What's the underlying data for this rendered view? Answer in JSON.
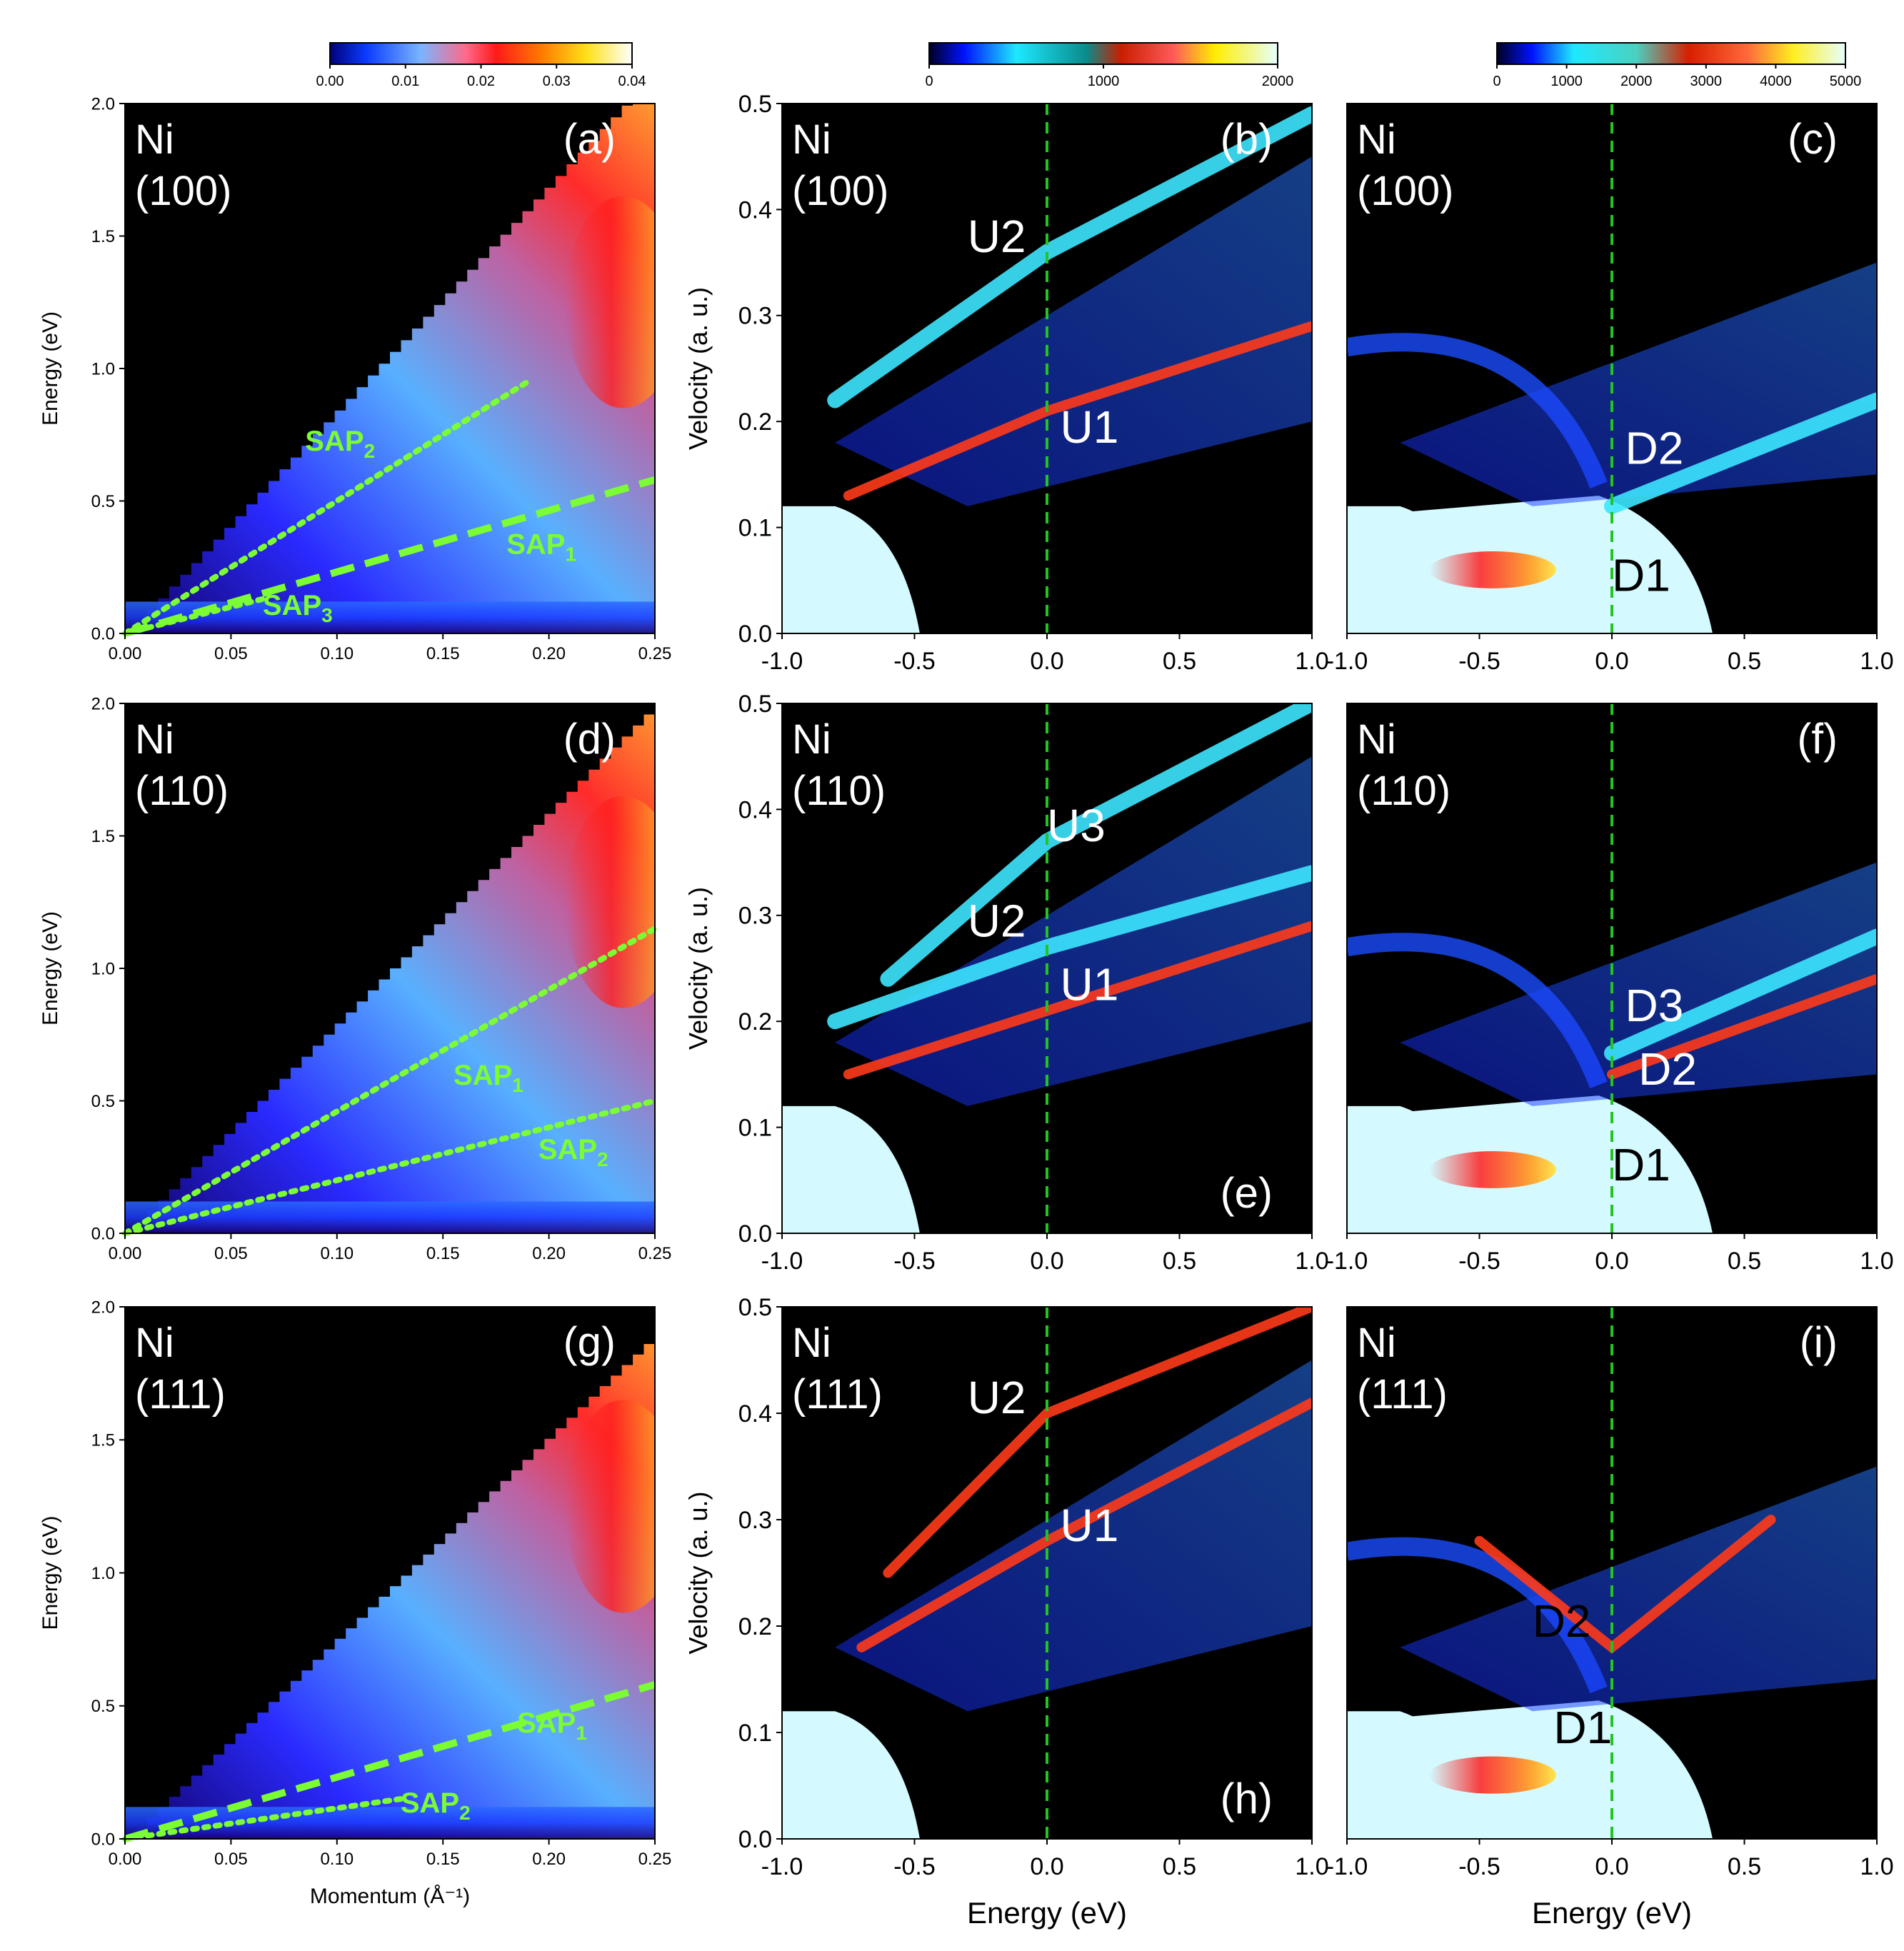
{
  "figure": {
    "alt": "Nine-panel figure of Ni (100), (110), (111): energy vs momentum (left) and velocity vs energy (middle, right)"
  },
  "colors": {
    "black": "#000000",
    "green": "#7CFC32",
    "dash_green": "#22c322",
    "white": "#ffffff",
    "text": "#000000"
  },
  "chart_data": [
    {
      "id": "a",
      "type": "heatmap",
      "panel_label": "(a)",
      "material": "Ni",
      "surface": "(100)",
      "xlabel": "",
      "ylabel": "Energy (eV)",
      "xlim": [
        0,
        0.25
      ],
      "ylim": [
        0,
        2.0
      ],
      "xticks": [
        "0.00",
        "0.05",
        "0.10",
        "0.15",
        "0.20",
        "0.25"
      ],
      "yticks": [
        "0.0",
        "0.5",
        "1.0",
        "1.5",
        "2.0"
      ],
      "colorbar": {
        "ticks": [
          "0.00",
          "0.01",
          "0.02",
          "0.03",
          "0.04"
        ],
        "range": [
          0,
          0.04
        ],
        "scheme": "jet-white"
      },
      "fan_edge": {
        "slope_eV_per_invA": 8.5
      },
      "bands": [
        {
          "name": "SAP_2",
          "style": "dotted",
          "x": [
            0.0,
            0.19
          ],
          "y": [
            0.0,
            0.95
          ]
        },
        {
          "name": "SAP_1",
          "style": "dashed",
          "x": [
            0.0,
            0.25
          ],
          "y": [
            0.0,
            0.58
          ]
        },
        {
          "name": "SAP_3",
          "style": "dotted",
          "x": [
            0.0,
            0.065
          ],
          "y": [
            0.0,
            0.13
          ]
        }
      ],
      "annotations": [
        {
          "text": "SAP",
          "sub": "2",
          "x": 0.085,
          "y": 0.69
        },
        {
          "text": "SAP",
          "sub": "1",
          "x": 0.18,
          "y": 0.3
        },
        {
          "text": "SAP",
          "sub": "3",
          "x": 0.065,
          "y": 0.07
        }
      ]
    },
    {
      "id": "b",
      "type": "heatmap",
      "panel_label": "(b)",
      "material": "Ni",
      "surface": "(100)",
      "xlabel": "",
      "ylabel": "Velocity (a. u.)",
      "xlim": [
        -1.0,
        1.0
      ],
      "ylim": [
        0,
        0.5
      ],
      "xticks": [
        "-1.0",
        "-0.5",
        "0.0",
        "0.5",
        "1.0"
      ],
      "yticks": [
        "0.0",
        "0.1",
        "0.2",
        "0.3",
        "0.4",
        "0.5"
      ],
      "colorbar": {
        "ticks": [
          "0",
          "1000",
          "2000"
        ],
        "range": [
          0,
          2000
        ],
        "scheme": "jet-white"
      },
      "vline_x": 0.0,
      "branches": [
        {
          "name": "U1",
          "x": [
            -0.75,
            0.0,
            1.0
          ],
          "y": [
            0.13,
            0.21,
            0.29
          ],
          "c": "red"
        },
        {
          "name": "U2",
          "x": [
            -0.8,
            0.0,
            1.0
          ],
          "y": [
            0.22,
            0.36,
            0.49
          ],
          "c": "cyan"
        }
      ],
      "labels": [
        {
          "text": "U2",
          "x": -0.3,
          "y": 0.36,
          "color": "white"
        },
        {
          "text": "U1",
          "x": 0.05,
          "y": 0.18,
          "color": "white"
        }
      ]
    },
    {
      "id": "c",
      "type": "heatmap",
      "panel_label": "(c)",
      "material": "Ni",
      "surface": "(100)",
      "xlabel": "",
      "ylabel": "",
      "xlim": [
        -1.0,
        1.0
      ],
      "ylim": [
        0,
        0.5
      ],
      "xticks": [
        "-1.0",
        "-0.5",
        "0.0",
        "0.5",
        "1.0"
      ],
      "yticks": [],
      "colorbar": {
        "ticks": [
          "0",
          "1000",
          "2000",
          "3000",
          "4000",
          "5000"
        ],
        "range": [
          0,
          5000
        ],
        "scheme": "jet-white"
      },
      "vline_x": 0.0,
      "branches": [
        {
          "name": "D2",
          "x": [
            0.0,
            1.0
          ],
          "y": [
            0.12,
            0.22
          ],
          "c": "cyan"
        }
      ],
      "labels": [
        {
          "text": "D2",
          "x": 0.05,
          "y": 0.16,
          "color": "white"
        },
        {
          "text": "D1",
          "x": 0.0,
          "y": 0.04,
          "color": "black"
        }
      ]
    },
    {
      "id": "d",
      "type": "heatmap",
      "panel_label": "(d)",
      "material": "Ni",
      "surface": "(110)",
      "xlabel": "",
      "ylabel": "Energy (eV)",
      "xlim": [
        0,
        0.25
      ],
      "ylim": [
        0,
        2.0
      ],
      "xticks": [
        "0.00",
        "0.05",
        "0.10",
        "0.15",
        "0.20",
        "0.25"
      ],
      "yticks": [
        "0.0",
        "0.5",
        "1.0",
        "1.5",
        "2.0"
      ],
      "fan_edge": {
        "slope_eV_per_invA": 8.0
      },
      "bands": [
        {
          "name": "SAP_1",
          "style": "dotted",
          "x": [
            0.0,
            0.25
          ],
          "y": [
            0.0,
            1.15
          ]
        },
        {
          "name": "SAP_2",
          "style": "dotted",
          "x": [
            0.0,
            0.25
          ],
          "y": [
            0.0,
            0.5
          ]
        }
      ],
      "annotations": [
        {
          "text": "SAP",
          "sub": "1",
          "x": 0.155,
          "y": 0.56
        },
        {
          "text": "SAP",
          "sub": "2",
          "x": 0.195,
          "y": 0.28
        }
      ]
    },
    {
      "id": "e",
      "type": "heatmap",
      "panel_label": "(e)",
      "material": "Ni",
      "surface": "(110)",
      "xlabel": "",
      "ylabel": "Velocity (a. u.)",
      "xlim": [
        -1.0,
        1.0
      ],
      "ylim": [
        0,
        0.5
      ],
      "xticks": [
        "-1.0",
        "-0.5",
        "0.0",
        "0.5",
        "1.0"
      ],
      "yticks": [
        "0.0",
        "0.1",
        "0.2",
        "0.3",
        "0.4",
        "0.5"
      ],
      "vline_x": 0.0,
      "branches": [
        {
          "name": "U1",
          "x": [
            -0.75,
            0.0,
            1.0
          ],
          "y": [
            0.15,
            0.21,
            0.29
          ],
          "c": "red"
        },
        {
          "name": "U2",
          "x": [
            -0.8,
            0.0,
            1.0
          ],
          "y": [
            0.2,
            0.27,
            0.34
          ],
          "c": "cyan"
        },
        {
          "name": "U3",
          "x": [
            -0.6,
            0.0,
            1.0
          ],
          "y": [
            0.24,
            0.37,
            0.5
          ],
          "c": "cyan"
        }
      ],
      "labels": [
        {
          "text": "U3",
          "x": 0.0,
          "y": 0.37,
          "color": "white"
        },
        {
          "text": "U2",
          "x": -0.3,
          "y": 0.28,
          "color": "white"
        },
        {
          "text": "U1",
          "x": 0.05,
          "y": 0.22,
          "color": "white"
        }
      ]
    },
    {
      "id": "f",
      "type": "heatmap",
      "panel_label": "(f)",
      "material": "Ni",
      "surface": "(110)",
      "xlabel": "",
      "ylabel": "",
      "xlim": [
        -1.0,
        1.0
      ],
      "ylim": [
        0,
        0.5
      ],
      "xticks": [
        "-1.0",
        "-0.5",
        "0.0",
        "0.5",
        "1.0"
      ],
      "yticks": [],
      "vline_x": 0.0,
      "branches": [
        {
          "name": "D3",
          "x": [
            0.0,
            1.0
          ],
          "y": [
            0.17,
            0.28
          ],
          "c": "cyan"
        },
        {
          "name": "D2",
          "x": [
            0.0,
            1.0
          ],
          "y": [
            0.15,
            0.24
          ],
          "c": "red"
        }
      ],
      "labels": [
        {
          "text": "D3",
          "x": 0.05,
          "y": 0.2,
          "color": "white"
        },
        {
          "text": "D2",
          "x": 0.1,
          "y": 0.14,
          "color": "white"
        },
        {
          "text": "D1",
          "x": 0.0,
          "y": 0.05,
          "color": "black"
        }
      ]
    },
    {
      "id": "g",
      "type": "heatmap",
      "panel_label": "(g)",
      "material": "Ni",
      "surface": "(111)",
      "xlabel": "Momentum (Å⁻¹)",
      "ylabel": "Energy (eV)",
      "xlim": [
        0,
        0.25
      ],
      "ylim": [
        0,
        2.0
      ],
      "xticks": [
        "0.00",
        "0.05",
        "0.10",
        "0.15",
        "0.20",
        "0.25"
      ],
      "yticks": [
        "0.0",
        "0.5",
        "1.0",
        "1.5",
        "2.0"
      ],
      "fan_edge": {
        "slope_eV_per_invA": 7.6
      },
      "bands": [
        {
          "name": "SAP_1",
          "style": "dashed",
          "x": [
            0.0,
            0.25
          ],
          "y": [
            0.0,
            0.58
          ]
        },
        {
          "name": "SAP_2",
          "style": "dotted",
          "x": [
            0.0,
            0.13
          ],
          "y": [
            0.0,
            0.15
          ]
        }
      ],
      "annotations": [
        {
          "text": "SAP",
          "sub": "1",
          "x": 0.185,
          "y": 0.4
        },
        {
          "text": "SAP",
          "sub": "2",
          "x": 0.13,
          "y": 0.1
        }
      ]
    },
    {
      "id": "h",
      "type": "heatmap",
      "panel_label": "(h)",
      "material": "Ni",
      "surface": "(111)",
      "xlabel": "Energy (eV)",
      "ylabel": "Velocity (a. u.)",
      "xlim": [
        -1.0,
        1.0
      ],
      "ylim": [
        0,
        0.5
      ],
      "xticks": [
        "-1.0",
        "-0.5",
        "0.0",
        "0.5",
        "1.0"
      ],
      "yticks": [
        "0.0",
        "0.1",
        "0.2",
        "0.3",
        "0.4",
        "0.5"
      ],
      "vline_x": 0.0,
      "branches": [
        {
          "name": "U1",
          "x": [
            -0.7,
            0.0,
            1.0
          ],
          "y": [
            0.18,
            0.28,
            0.41
          ],
          "c": "red"
        },
        {
          "name": "U2",
          "x": [
            -0.6,
            0.0,
            1.0
          ],
          "y": [
            0.25,
            0.4,
            0.5
          ],
          "c": "red"
        }
      ],
      "labels": [
        {
          "text": "U2",
          "x": -0.3,
          "y": 0.4,
          "color": "white"
        },
        {
          "text": "U1",
          "x": 0.05,
          "y": 0.28,
          "color": "white"
        }
      ]
    },
    {
      "id": "i",
      "type": "heatmap",
      "panel_label": "(i)",
      "material": "Ni",
      "surface": "(111)",
      "xlabel": "Energy (eV)",
      "ylabel": "",
      "xlim": [
        -1.0,
        1.0
      ],
      "ylim": [
        0,
        0.5
      ],
      "xticks": [
        "-1.0",
        "-0.5",
        "0.0",
        "0.5",
        "1.0"
      ],
      "yticks": [],
      "vline_x": 0.0,
      "branches": [
        {
          "name": "D2",
          "x": [
            -0.5,
            0.0,
            0.6
          ],
          "y": [
            0.28,
            0.18,
            0.3
          ],
          "c": "red"
        }
      ],
      "labels": [
        {
          "text": "D2",
          "x": -0.3,
          "y": 0.19,
          "color": "black"
        },
        {
          "text": "D1",
          "x": -0.22,
          "y": 0.09,
          "color": "black"
        }
      ]
    }
  ]
}
